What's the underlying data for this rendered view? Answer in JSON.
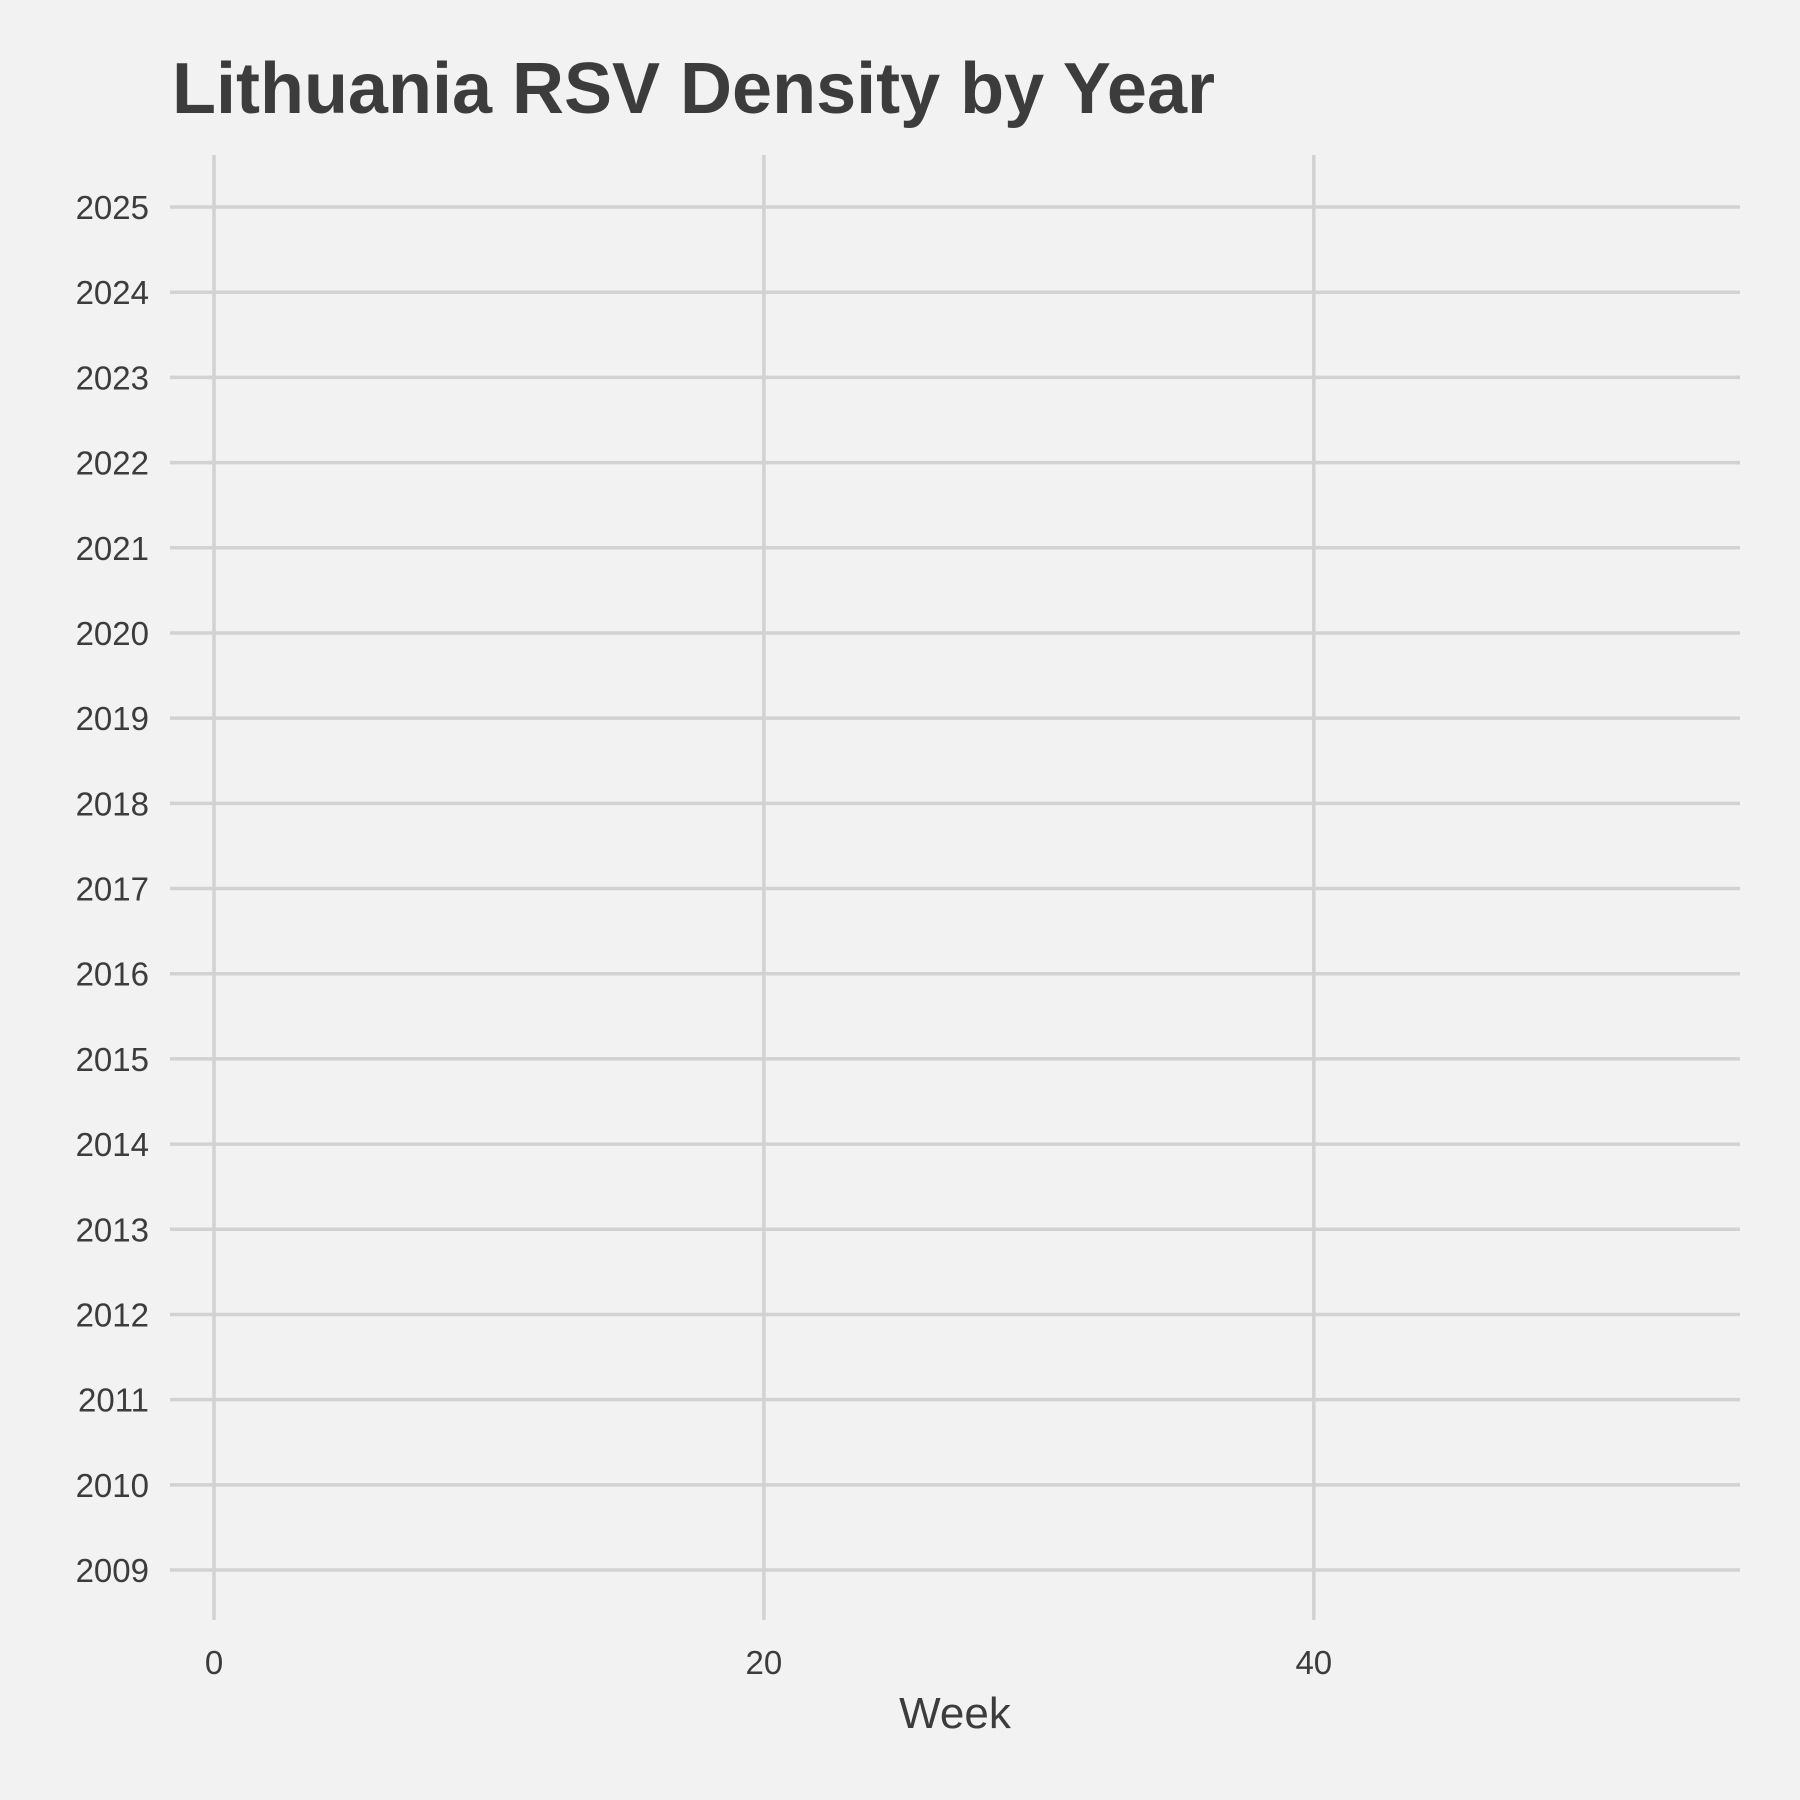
{
  "chart_data": {
    "type": "ridgeline",
    "title": "Lithuania RSV Density by Year",
    "xlabel": "Week",
    "ylabel": "",
    "xlim": [
      -1.6,
      55.5
    ],
    "x_ticks": [
      0,
      20,
      40
    ],
    "categories": [
      "2009",
      "2010",
      "2011",
      "2012",
      "2013",
      "2014",
      "2015",
      "2016",
      "2017",
      "2018",
      "2019",
      "2020",
      "2021",
      "2022",
      "2023",
      "2024",
      "2025"
    ],
    "series": [],
    "grid": true,
    "legend": "none",
    "colors": {
      "background": "#f2f2f2",
      "grid": "#d2d2d2",
      "text": "#3c3c3c"
    }
  }
}
